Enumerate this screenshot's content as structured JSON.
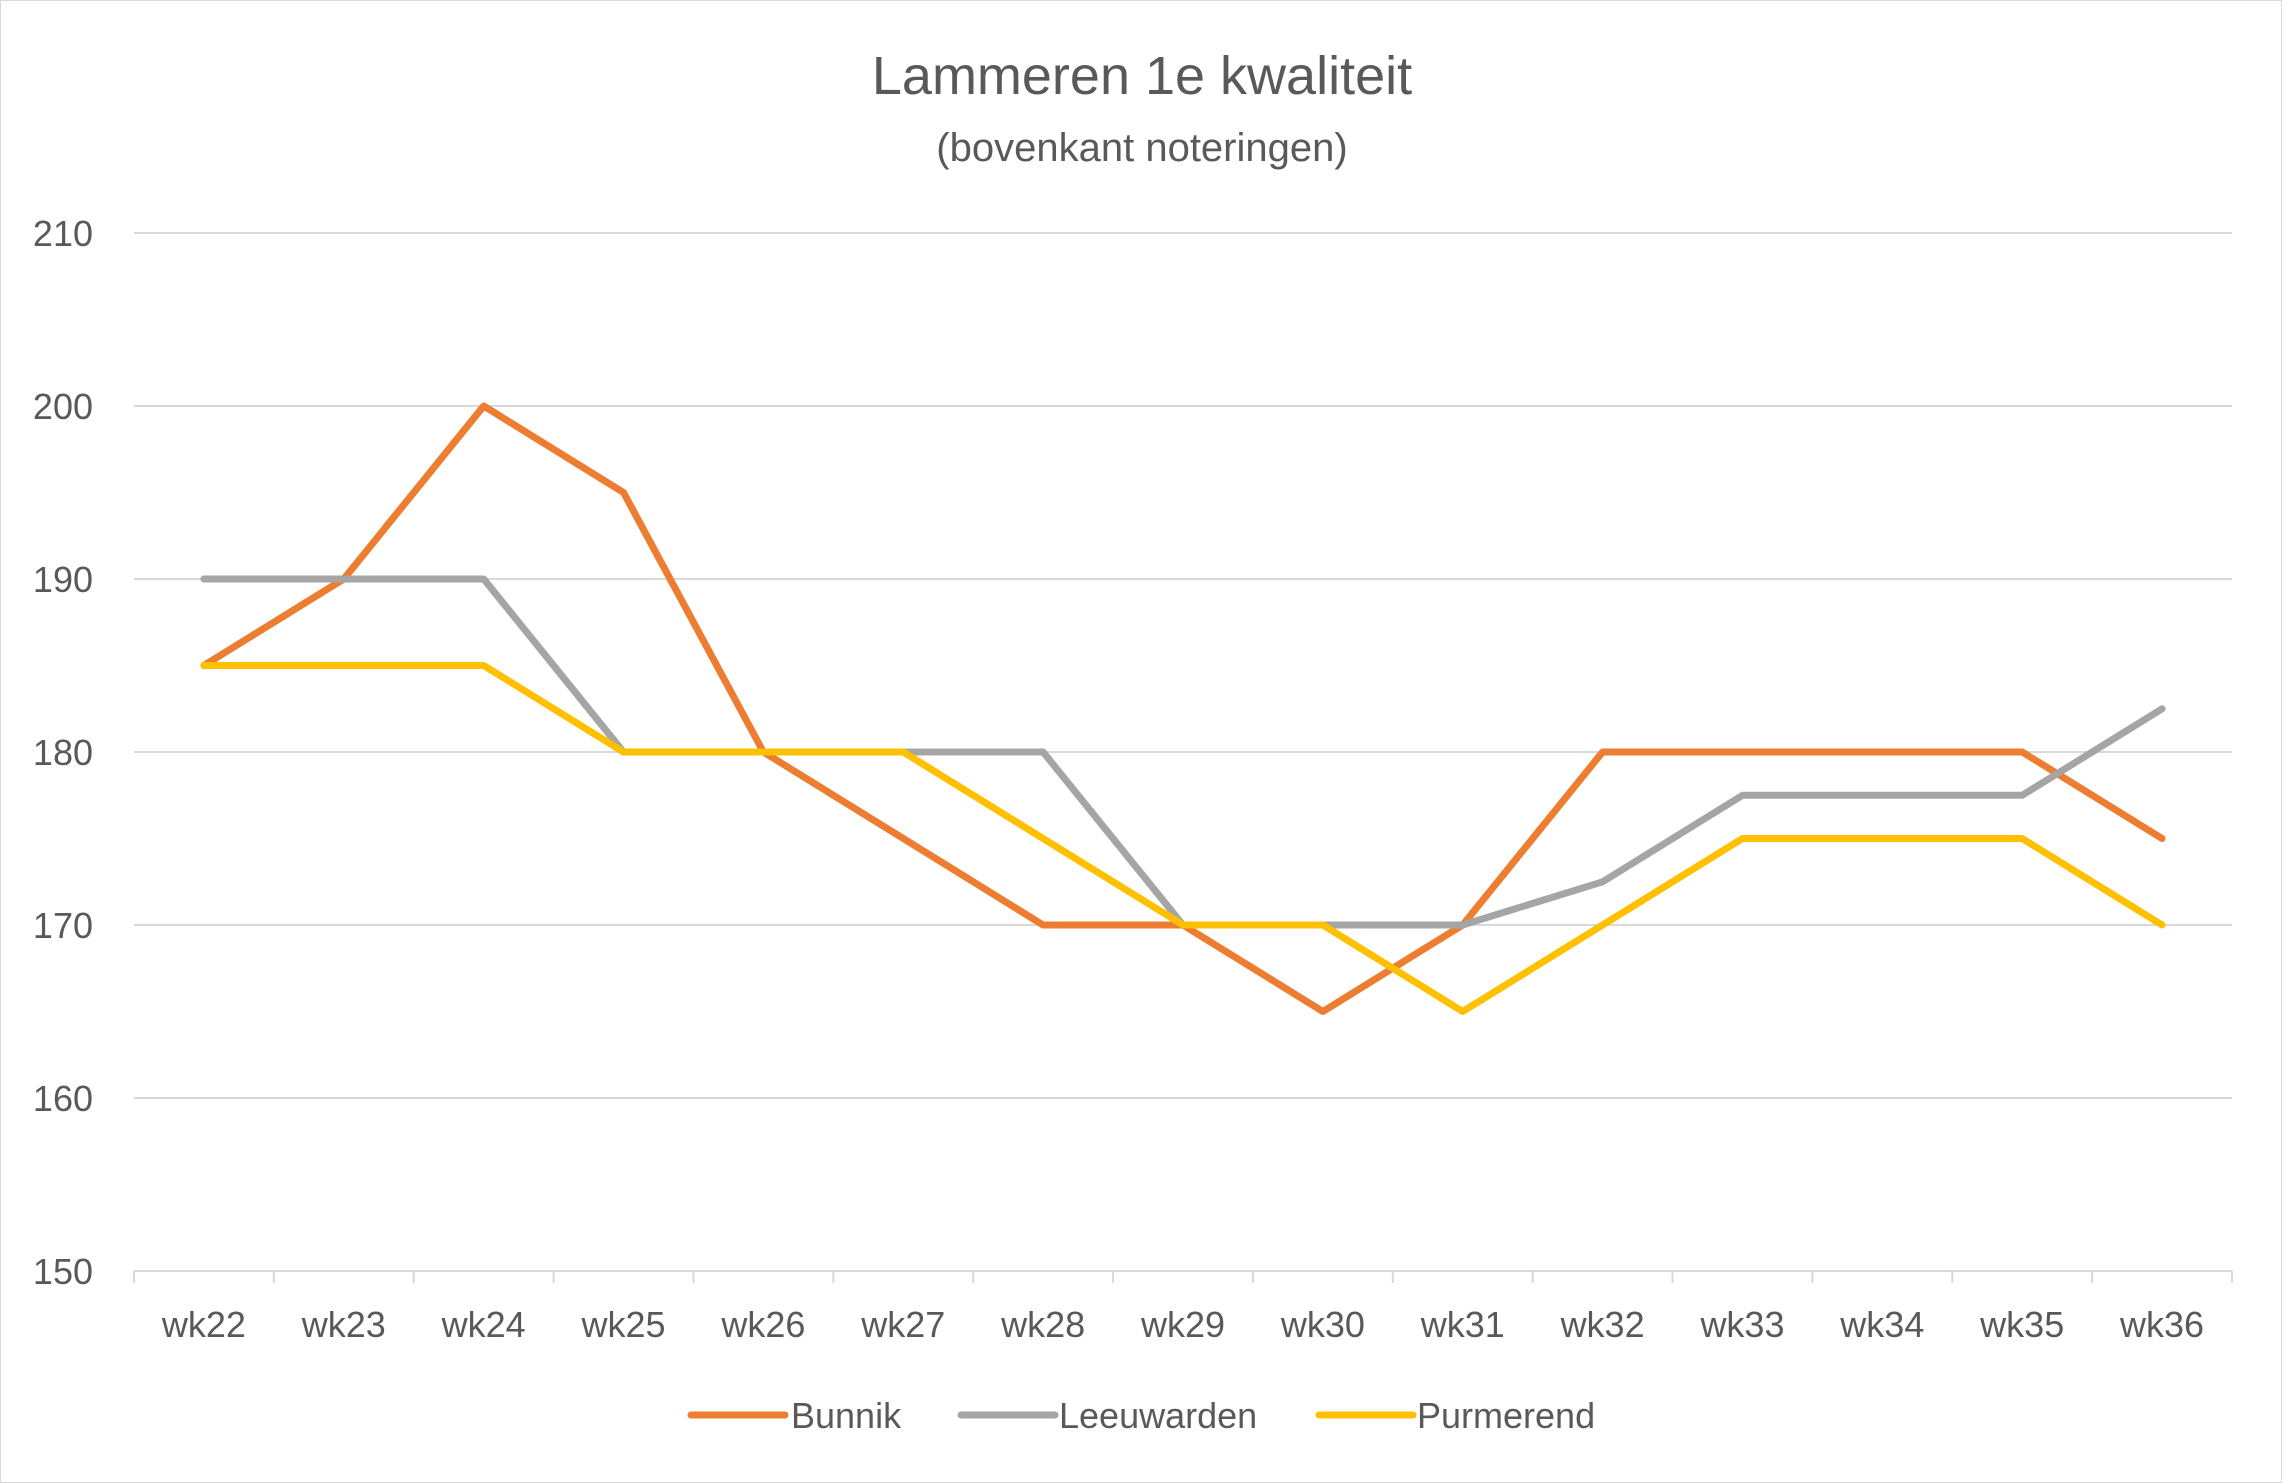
{
  "chart_data": {
    "type": "line",
    "title": "Lammeren 1e kwaliteit",
    "subtitle": "(bovenkant noteringen)",
    "xlabel": "",
    "ylabel": "",
    "categories": [
      "wk22",
      "wk23",
      "wk24",
      "wk25",
      "wk26",
      "wk27",
      "wk28",
      "wk29",
      "wk30",
      "wk31",
      "wk32",
      "wk33",
      "wk34",
      "wk35",
      "wk36"
    ],
    "ylim": [
      150,
      210
    ],
    "yticks": [
      150,
      160,
      170,
      180,
      190,
      200,
      210
    ],
    "ytick_labels": [
      "150",
      "160",
      "170",
      "180",
      "190",
      "200",
      "210"
    ],
    "grid": true,
    "legend_position": "bottom",
    "series": [
      {
        "name": "Bunnik",
        "color": "#ed7d31",
        "values": [
          185,
          190,
          200,
          195,
          180,
          175,
          170,
          170,
          165,
          170,
          180,
          180,
          180,
          180,
          175
        ]
      },
      {
        "name": "Leeuwarden",
        "color": "#a5a5a5",
        "values": [
          190,
          190,
          190,
          180,
          180,
          180,
          180,
          170,
          170,
          170,
          172.5,
          177.5,
          177.5,
          177.5,
          182.5
        ]
      },
      {
        "name": "Purmerend",
        "color": "#ffc000",
        "values": [
          185,
          185,
          185,
          180,
          180,
          180,
          175,
          170,
          170,
          165,
          170,
          175,
          175,
          175,
          170
        ]
      }
    ]
  }
}
